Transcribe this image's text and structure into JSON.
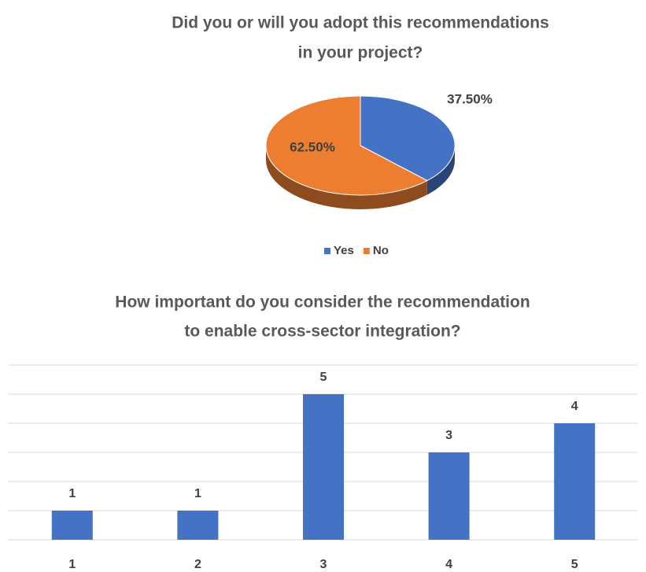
{
  "chart_data": [
    {
      "type": "pie",
      "title": [
        "Did you or will you adopt this recommendations",
        "in your project?"
      ],
      "categories": [
        "Yes",
        "No"
      ],
      "values": [
        37.5,
        62.5
      ],
      "value_labels": [
        "37.50%",
        "62.50%"
      ],
      "colors": [
        "#4472c4",
        "#ed7d31"
      ],
      "legend": "bottom"
    },
    {
      "type": "bar",
      "title": [
        "How important do you consider the recommendation",
        "to enable cross-sector integration?"
      ],
      "categories": [
        "1",
        "2",
        "3",
        "4",
        "5"
      ],
      "values": [
        1,
        1,
        5,
        3,
        4
      ],
      "color": "#4472c4",
      "ylim": [
        0,
        6
      ],
      "yticks": [
        0,
        1,
        2,
        3,
        4,
        5,
        6
      ],
      "grid": true
    }
  ]
}
